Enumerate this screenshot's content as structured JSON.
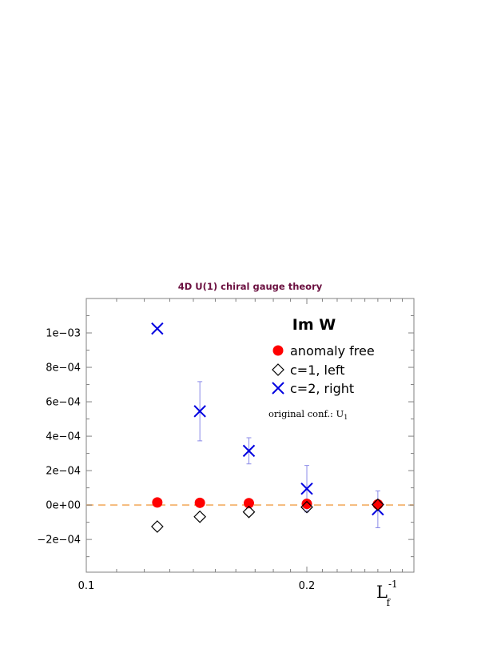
{
  "chart_data": {
    "type": "scatter",
    "title": "4D U(1) chiral gauge theory",
    "heading": "Im W",
    "annotation": {
      "text": "original conf.: U",
      "subscript": "1"
    },
    "xlabel": {
      "base": "L",
      "superscript": "-1",
      "subscript": "f"
    },
    "ylabel": "",
    "x_scale": "log",
    "xlim": [
      0.1,
      0.28
    ],
    "ylim": [
      -0.00039,
      0.0012
    ],
    "x_ticks": [
      {
        "value": 0.1,
        "label": "0.1"
      },
      {
        "value": 0.2,
        "label": "0.2"
      }
    ],
    "y_ticks": [
      {
        "value": -0.0002,
        "label": "−2e−04"
      },
      {
        "value": 0,
        "label": "0e+00"
      },
      {
        "value": 0.0002,
        "label": "2e−04"
      },
      {
        "value": 0.0004,
        "label": "4e−04"
      },
      {
        "value": 0.0006,
        "label": "6e−04"
      },
      {
        "value": 0.0008,
        "label": "8e−04"
      },
      {
        "value": 0.001,
        "label": "1e−03"
      }
    ],
    "reference_line": {
      "y": 0,
      "style": "dashed",
      "color": "#f5b97a"
    },
    "legend_position": "top-right",
    "series": [
      {
        "name": "anomaly free",
        "marker": "filled-circle",
        "color": "#ff0000",
        "x": [
          0.125,
          0.1429,
          0.1667,
          0.2,
          0.25
        ],
        "y": [
          1.5e-05,
          1.3e-05,
          1.1e-05,
          7e-06,
          4e-06
        ],
        "err": [
          0,
          0,
          0,
          0,
          0
        ]
      },
      {
        "name": "c=1, left",
        "marker": "open-diamond",
        "color": "#000000",
        "x": [
          0.125,
          0.1429,
          0.1667,
          0.2,
          0.25
        ],
        "y": [
          -0.000125,
          -6.8e-05,
          -4e-05,
          -1.2e-05,
          2e-06
        ],
        "err": [
          0,
          0,
          0,
          0,
          0
        ]
      },
      {
        "name": "c=2, right",
        "marker": "cross",
        "color": "#0000e0",
        "x": [
          0.125,
          0.1429,
          0.1667,
          0.2,
          0.25
        ],
        "y": [
          0.001025,
          0.000545,
          0.000315,
          9.5e-05,
          -2.5e-05
        ],
        "err": [
          0,
          0.000172,
          7.6e-05,
          0.000135,
          0.000107
        ]
      }
    ]
  }
}
